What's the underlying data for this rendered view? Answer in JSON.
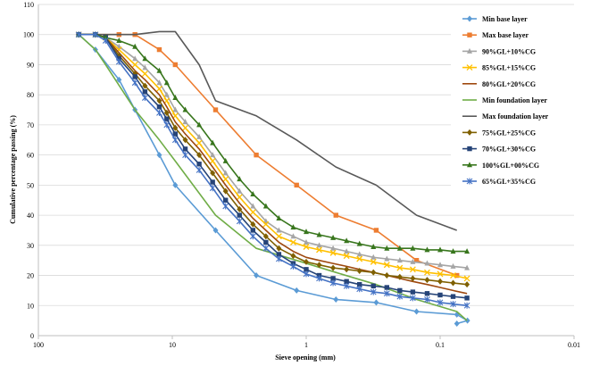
{
  "chart_data": {
    "type": "line",
    "xscale": "log",
    "xreversed": true,
    "xlim": [
      100,
      0.01
    ],
    "ylim": [
      0,
      110
    ],
    "xticks": [
      100,
      10,
      1,
      0.1,
      0.01
    ],
    "xtick_labels": [
      "100",
      "10",
      "1",
      "0.1",
      "0.01"
    ],
    "yticks": [
      0,
      10,
      20,
      30,
      40,
      50,
      60,
      70,
      80,
      90,
      100,
      110
    ],
    "ytick_labels": [
      "0",
      "10",
      "20",
      "30",
      "40",
      "50",
      "60",
      "70",
      "80",
      "90",
      "100",
      "110"
    ],
    "xlabel": "Sieve opening (mm)",
    "ylabel": "Cumulative percentage passing (%)",
    "grid": "horizontal",
    "legend_position": "right",
    "series": [
      {
        "name": "Min base layer",
        "color": "#5B9BD5",
        "marker": "diamond",
        "points": [
          [
            50,
            100
          ],
          [
            37.5,
            95
          ],
          [
            25,
            85
          ],
          [
            19,
            75
          ],
          [
            12.5,
            60
          ],
          [
            9.5,
            50
          ],
          [
            4.75,
            35
          ],
          [
            2.36,
            20
          ],
          [
            1.18,
            15
          ],
          [
            0.6,
            12
          ],
          [
            0.3,
            11
          ],
          [
            0.15,
            8
          ],
          [
            0.075,
            7
          ],
          [
            0.0625,
            5
          ],
          [
            0.075,
            4
          ]
        ]
      },
      {
        "name": "Max base layer",
        "color": "#ED7D31",
        "marker": "square",
        "points": [
          [
            50,
            100
          ],
          [
            25,
            100
          ],
          [
            19,
            100
          ],
          [
            12.5,
            95
          ],
          [
            9.5,
            90
          ],
          [
            4.75,
            75
          ],
          [
            2.36,
            60
          ],
          [
            1.18,
            50
          ],
          [
            0.6,
            40
          ],
          [
            0.3,
            35
          ],
          [
            0.15,
            25
          ],
          [
            0.075,
            20
          ]
        ]
      },
      {
        "name": "90%GL+10%CG",
        "color": "#A5A5A5",
        "marker": "triangle",
        "points": [
          [
            50,
            100
          ],
          [
            37.5,
            100
          ],
          [
            31.5,
            99
          ],
          [
            25,
            96
          ],
          [
            19,
            92
          ],
          [
            16,
            89
          ],
          [
            12.5,
            84
          ],
          [
            11,
            80
          ],
          [
            9.5,
            75
          ],
          [
            8,
            71
          ],
          [
            6.3,
            66
          ],
          [
            5,
            60
          ],
          [
            4,
            54
          ],
          [
            3.15,
            48
          ],
          [
            2.5,
            43
          ],
          [
            2,
            38
          ],
          [
            1.6,
            35
          ],
          [
            1.25,
            33
          ],
          [
            1,
            31
          ],
          [
            0.8,
            30
          ],
          [
            0.63,
            29
          ],
          [
            0.5,
            28
          ],
          [
            0.4,
            27
          ],
          [
            0.315,
            26
          ],
          [
            0.25,
            25.5
          ],
          [
            0.2,
            25
          ],
          [
            0.16,
            24.5
          ],
          [
            0.125,
            24
          ],
          [
            0.1,
            23.5
          ],
          [
            0.08,
            23
          ],
          [
            0.063,
            22.5
          ]
        ]
      },
      {
        "name": "85%GL+15%CG",
        "color": "#FFC000",
        "marker": "x",
        "points": [
          [
            50,
            100
          ],
          [
            37.5,
            100
          ],
          [
            31.5,
            99
          ],
          [
            25,
            95
          ],
          [
            19,
            90
          ],
          [
            16,
            87
          ],
          [
            12.5,
            82
          ],
          [
            11,
            78
          ],
          [
            9.5,
            73
          ],
          [
            8,
            69
          ],
          [
            6.3,
            64
          ],
          [
            5,
            58
          ],
          [
            4,
            52
          ],
          [
            3.15,
            46
          ],
          [
            2.5,
            41
          ],
          [
            2,
            37
          ],
          [
            1.6,
            33
          ],
          [
            1.25,
            31
          ],
          [
            1,
            29.5
          ],
          [
            0.8,
            28.5
          ],
          [
            0.63,
            27.5
          ],
          [
            0.5,
            26.5
          ],
          [
            0.4,
            25.5
          ],
          [
            0.315,
            24.5
          ],
          [
            0.25,
            23.5
          ],
          [
            0.2,
            22.5
          ],
          [
            0.16,
            22
          ],
          [
            0.125,
            21
          ],
          [
            0.1,
            20.5
          ],
          [
            0.08,
            20
          ],
          [
            0.063,
            19
          ]
        ]
      },
      {
        "name": "80%GL+20%CG",
        "color": "#9E480E",
        "marker": "none",
        "points": [
          [
            50,
            100
          ],
          [
            37.5,
            100
          ],
          [
            31.5,
            99
          ],
          [
            25,
            94
          ],
          [
            19,
            88
          ],
          [
            16,
            85
          ],
          [
            12.5,
            80
          ],
          [
            11,
            76
          ],
          [
            9.5,
            71
          ],
          [
            8,
            67
          ],
          [
            6.3,
            62
          ],
          [
            5,
            56
          ],
          [
            4,
            50
          ],
          [
            3.15,
            44
          ],
          [
            2.5,
            39
          ],
          [
            2,
            35
          ],
          [
            1.6,
            31
          ],
          [
            1.25,
            28
          ],
          [
            1,
            26
          ],
          [
            0.8,
            25
          ],
          [
            0.63,
            24
          ],
          [
            0.5,
            23
          ],
          [
            0.4,
            22
          ],
          [
            0.315,
            21
          ],
          [
            0.25,
            20
          ],
          [
            0.2,
            19
          ],
          [
            0.16,
            18
          ],
          [
            0.125,
            17
          ],
          [
            0.1,
            16
          ],
          [
            0.08,
            15
          ],
          [
            0.063,
            14
          ]
        ]
      },
      {
        "name": "Min foundation layer",
        "color": "#70AD47",
        "marker": "none",
        "points": [
          [
            50,
            100
          ],
          [
            37.5,
            95
          ],
          [
            31.5,
            90
          ],
          [
            19,
            75
          ],
          [
            12.5,
            65
          ],
          [
            9.5,
            58
          ],
          [
            4.75,
            40
          ],
          [
            2.36,
            29
          ],
          [
            1.18,
            25
          ],
          [
            0.6,
            21
          ],
          [
            0.3,
            17
          ],
          [
            0.15,
            12
          ],
          [
            0.075,
            8
          ],
          [
            0.063,
            5
          ]
        ]
      },
      {
        "name": "Max foundation layer",
        "color": "#595959",
        "marker": "none",
        "points": [
          [
            50,
            100
          ],
          [
            25,
            100
          ],
          [
            19,
            100
          ],
          [
            12.5,
            101
          ],
          [
            9.5,
            101
          ],
          [
            6.3,
            90
          ],
          [
            4.75,
            78
          ],
          [
            2.36,
            73
          ],
          [
            1.18,
            65
          ],
          [
            0.6,
            56
          ],
          [
            0.3,
            50
          ],
          [
            0.15,
            40
          ],
          [
            0.075,
            35
          ]
        ]
      },
      {
        "name": "75%GL+25%CG",
        "color": "#7F6000",
        "marker": "diamond",
        "points": [
          [
            50,
            100
          ],
          [
            37.5,
            100
          ],
          [
            31.5,
            99
          ],
          [
            25,
            93
          ],
          [
            19,
            87
          ],
          [
            16,
            83
          ],
          [
            12.5,
            78
          ],
          [
            11,
            74
          ],
          [
            9.5,
            69
          ],
          [
            8,
            65
          ],
          [
            6.3,
            60
          ],
          [
            5,
            54
          ],
          [
            4,
            48
          ],
          [
            3.15,
            42
          ],
          [
            2.5,
            37
          ],
          [
            2,
            33
          ],
          [
            1.6,
            29
          ],
          [
            1.25,
            26.5
          ],
          [
            1,
            24.5
          ],
          [
            0.8,
            23.5
          ],
          [
            0.63,
            22.5
          ],
          [
            0.5,
            22
          ],
          [
            0.4,
            21.5
          ],
          [
            0.315,
            21
          ],
          [
            0.25,
            20
          ],
          [
            0.2,
            19.5
          ],
          [
            0.16,
            19
          ],
          [
            0.125,
            18.5
          ],
          [
            0.1,
            18
          ],
          [
            0.08,
            17.5
          ],
          [
            0.063,
            17
          ]
        ]
      },
      {
        "name": "70%GL+30%CG",
        "color": "#264478",
        "marker": "square",
        "points": [
          [
            50,
            100
          ],
          [
            37.5,
            100
          ],
          [
            31.5,
            99
          ],
          [
            25,
            92
          ],
          [
            19,
            86
          ],
          [
            16,
            81
          ],
          [
            12.5,
            76
          ],
          [
            11,
            72
          ],
          [
            9.5,
            67
          ],
          [
            8,
            62
          ],
          [
            6.3,
            57
          ],
          [
            5,
            51
          ],
          [
            4,
            45
          ],
          [
            3.15,
            40
          ],
          [
            2.5,
            35
          ],
          [
            2,
            31
          ],
          [
            1.6,
            27
          ],
          [
            1.25,
            24
          ],
          [
            1,
            22
          ],
          [
            0.8,
            20
          ],
          [
            0.63,
            19
          ],
          [
            0.5,
            18
          ],
          [
            0.4,
            17
          ],
          [
            0.315,
            16.5
          ],
          [
            0.25,
            16
          ],
          [
            0.2,
            15
          ],
          [
            0.16,
            14.5
          ],
          [
            0.125,
            14
          ],
          [
            0.1,
            13.5
          ],
          [
            0.08,
            13
          ],
          [
            0.063,
            12.5
          ]
        ]
      },
      {
        "name": "100%GL+00%CG",
        "color": "#38761D",
        "marker": "triangle",
        "points": [
          [
            50,
            100
          ],
          [
            37.5,
            100
          ],
          [
            31.5,
            99
          ],
          [
            25,
            98
          ],
          [
            19,
            96
          ],
          [
            16,
            92
          ],
          [
            12.5,
            88
          ],
          [
            11,
            84
          ],
          [
            9.5,
            79
          ],
          [
            8,
            75
          ],
          [
            6.3,
            70
          ],
          [
            5,
            64
          ],
          [
            4,
            58
          ],
          [
            3.15,
            52
          ],
          [
            2.5,
            47
          ],
          [
            2,
            43
          ],
          [
            1.6,
            39
          ],
          [
            1.25,
            36
          ],
          [
            1,
            34.5
          ],
          [
            0.8,
            33.5
          ],
          [
            0.63,
            32.5
          ],
          [
            0.5,
            31.5
          ],
          [
            0.4,
            30.5
          ],
          [
            0.315,
            29.5
          ],
          [
            0.25,
            29
          ],
          [
            0.2,
            29
          ],
          [
            0.16,
            29
          ],
          [
            0.125,
            28.5
          ],
          [
            0.1,
            28.5
          ],
          [
            0.08,
            28
          ],
          [
            0.063,
            28
          ]
        ]
      },
      {
        "name": "65%GL+35%CG",
        "color": "#4472C4",
        "marker": "star",
        "points": [
          [
            50,
            100
          ],
          [
            37.5,
            100
          ],
          [
            31.5,
            98
          ],
          [
            25,
            91
          ],
          [
            19,
            84
          ],
          [
            16,
            79
          ],
          [
            12.5,
            74
          ],
          [
            11,
            70
          ],
          [
            9.5,
            65
          ],
          [
            8,
            60
          ],
          [
            6.3,
            55
          ],
          [
            5,
            49
          ],
          [
            4,
            43
          ],
          [
            3.15,
            38
          ],
          [
            2.5,
            33
          ],
          [
            2,
            29
          ],
          [
            1.6,
            25.5
          ],
          [
            1.25,
            23
          ],
          [
            1,
            20.5
          ],
          [
            0.8,
            19
          ],
          [
            0.63,
            17.5
          ],
          [
            0.5,
            16.5
          ],
          [
            0.4,
            15.5
          ],
          [
            0.315,
            14.5
          ],
          [
            0.25,
            14
          ],
          [
            0.2,
            13
          ],
          [
            0.16,
            12.5
          ],
          [
            0.125,
            12
          ],
          [
            0.1,
            11
          ],
          [
            0.08,
            10.5
          ],
          [
            0.063,
            10
          ]
        ]
      }
    ]
  }
}
